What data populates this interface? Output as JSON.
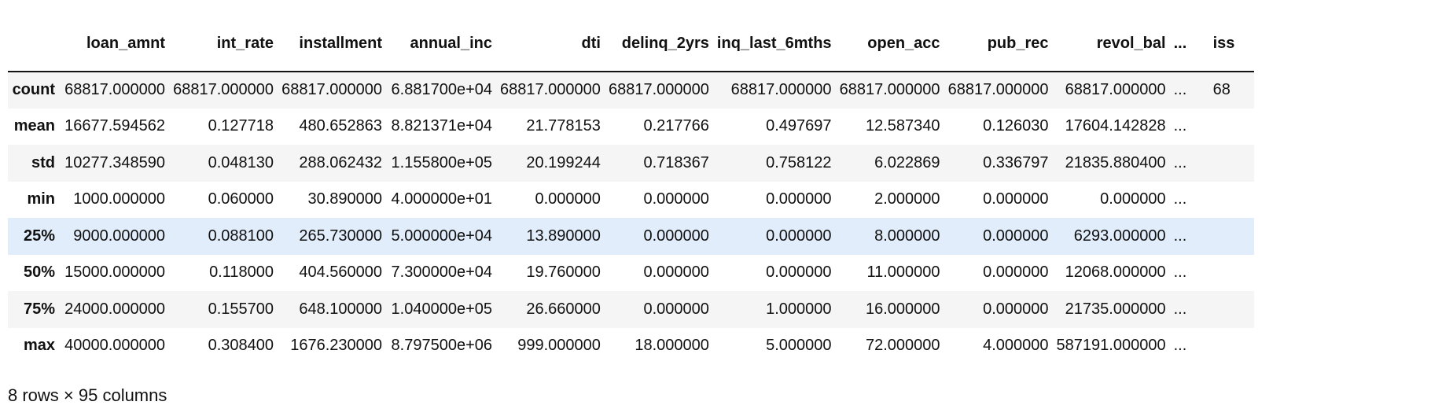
{
  "table": {
    "columns": [
      "loan_amnt",
      "int_rate",
      "installment",
      "annual_inc",
      "dti",
      "delinq_2yrs",
      "inq_last_6mths",
      "open_acc",
      "pub_rec",
      "revol_bal",
      "...",
      "iss"
    ],
    "rows": [
      {
        "index": "count",
        "cells": [
          "68817.000000",
          "68817.000000",
          "68817.000000",
          "6.881700e+04",
          "68817.000000",
          "68817.000000",
          "68817.000000",
          "68817.000000",
          "68817.000000",
          "68817.000000",
          "...",
          "68"
        ]
      },
      {
        "index": "mean",
        "cells": [
          "16677.594562",
          "0.127718",
          "480.652863",
          "8.821371e+04",
          "21.778153",
          "0.217766",
          "0.497697",
          "12.587340",
          "0.126030",
          "17604.142828",
          "...",
          ""
        ]
      },
      {
        "index": "std",
        "cells": [
          "10277.348590",
          "0.048130",
          "288.062432",
          "1.155800e+05",
          "20.199244",
          "0.718367",
          "0.758122",
          "6.022869",
          "0.336797",
          "21835.880400",
          "...",
          ""
        ]
      },
      {
        "index": "min",
        "cells": [
          "1000.000000",
          "0.060000",
          "30.890000",
          "4.000000e+01",
          "0.000000",
          "0.000000",
          "0.000000",
          "2.000000",
          "0.000000",
          "0.000000",
          "...",
          ""
        ]
      },
      {
        "index": "25%",
        "cells": [
          "9000.000000",
          "0.088100",
          "265.730000",
          "5.000000e+04",
          "13.890000",
          "0.000000",
          "0.000000",
          "8.000000",
          "0.000000",
          "6293.000000",
          "...",
          ""
        ]
      },
      {
        "index": "50%",
        "cells": [
          "15000.000000",
          "0.118000",
          "404.560000",
          "7.300000e+04",
          "19.760000",
          "0.000000",
          "0.000000",
          "11.000000",
          "0.000000",
          "12068.000000",
          "...",
          ""
        ]
      },
      {
        "index": "75%",
        "cells": [
          "24000.000000",
          "0.155700",
          "648.100000",
          "1.040000e+05",
          "26.660000",
          "0.000000",
          "1.000000",
          "16.000000",
          "0.000000",
          "21735.000000",
          "...",
          ""
        ]
      },
      {
        "index": "max",
        "cells": [
          "40000.000000",
          "0.308400",
          "1676.230000",
          "8.797500e+06",
          "999.000000",
          "18.000000",
          "5.000000",
          "72.000000",
          "4.000000",
          "587191.000000",
          "...",
          ""
        ]
      }
    ],
    "highlighted_row": 4
  },
  "footer": {
    "shape_text": "8 rows × 95 columns"
  }
}
